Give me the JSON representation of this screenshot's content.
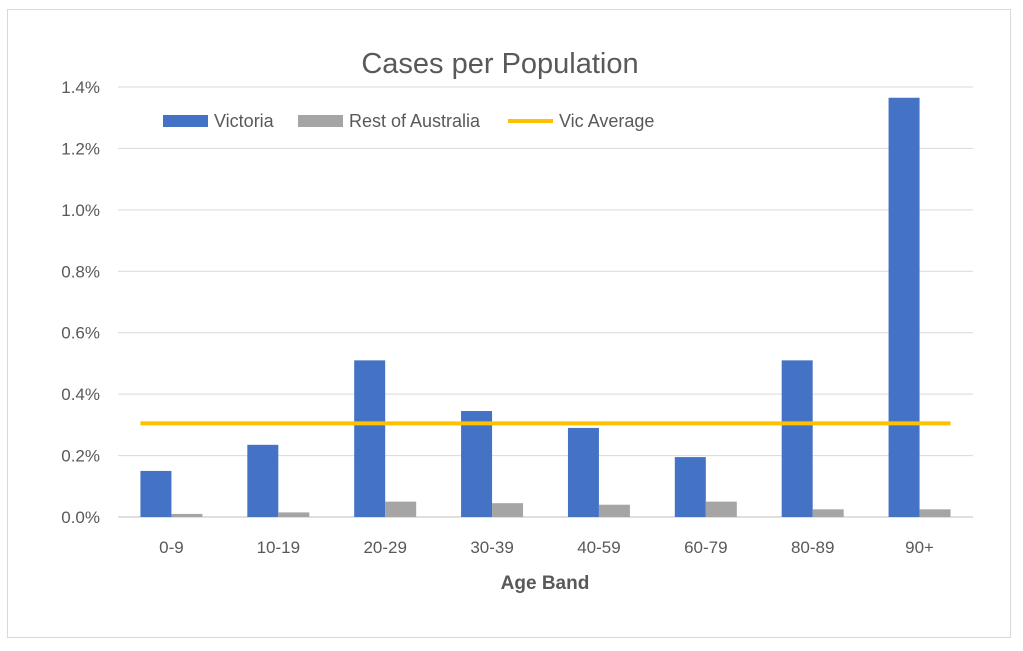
{
  "chart_data": {
    "type": "bar",
    "title": "Cases per Population",
    "xlabel": "Age Band",
    "ylabel": "",
    "categories": [
      "0-9",
      "10-19",
      "20-29",
      "30-39",
      "40-59",
      "60-79",
      "80-89",
      "90+"
    ],
    "series": [
      {
        "name": "Victoria",
        "type": "bar",
        "color": "#4472c4",
        "values": [
          0.15,
          0.235,
          0.51,
          0.345,
          0.29,
          0.195,
          0.51,
          1.365
        ]
      },
      {
        "name": "Rest of Australia",
        "type": "bar",
        "color": "#a5a5a5",
        "values": [
          0.01,
          0.015,
          0.05,
          0.045,
          0.04,
          0.05,
          0.025,
          0.025
        ]
      },
      {
        "name": "Vic Average",
        "type": "line",
        "color": "#ffc000",
        "values": [
          0.305,
          0.305,
          0.305,
          0.305,
          0.305,
          0.305,
          0.305,
          0.305
        ]
      }
    ],
    "ylim": [
      0,
      1.4
    ],
    "yticks": [
      0,
      0.2,
      0.4,
      0.6,
      0.8,
      1.0,
      1.2,
      1.4
    ],
    "ytick_labels": [
      "0.0%",
      "0.2%",
      "0.4%",
      "0.6%",
      "0.8%",
      "1.0%",
      "1.2%",
      "1.4%"
    ],
    "grid": true,
    "legend_position": "top-left"
  }
}
